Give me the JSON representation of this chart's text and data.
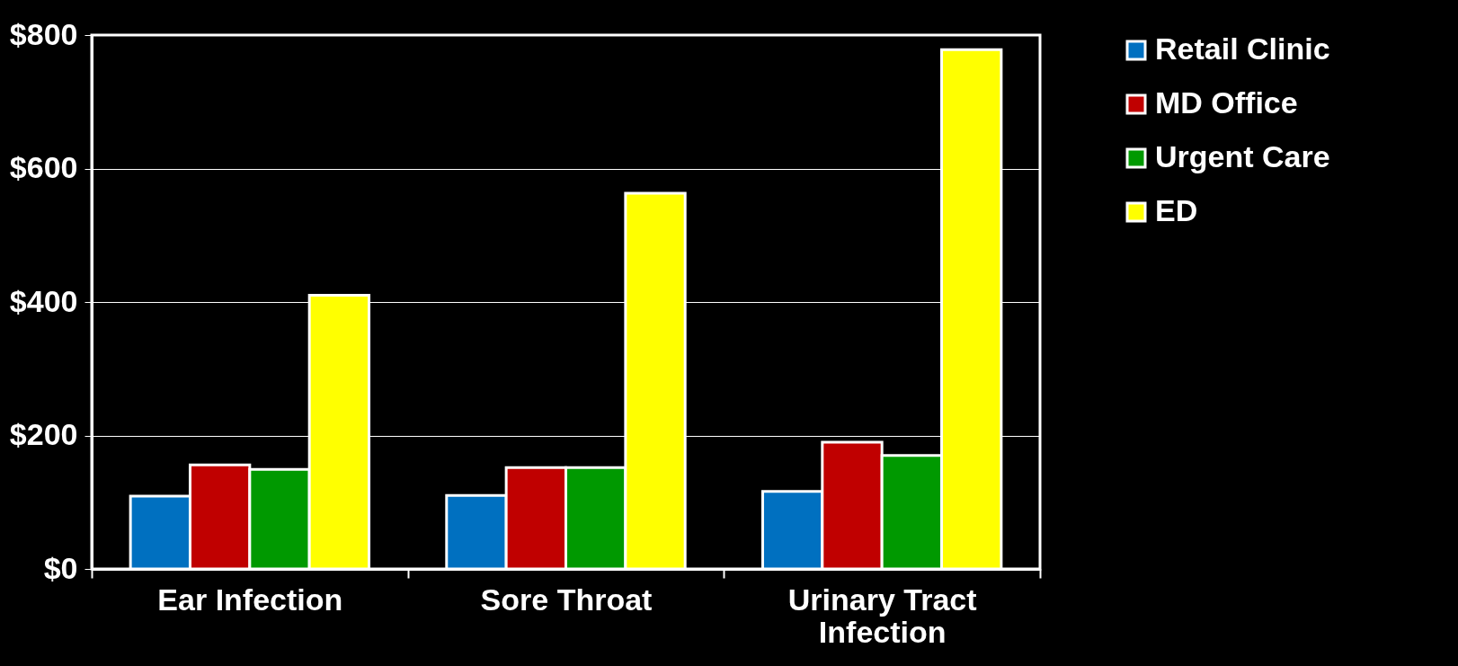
{
  "chart_data": {
    "type": "bar",
    "categories": [
      "Ear Infection",
      "Sore Throat",
      "Urinary Tract Infection"
    ],
    "series": [
      {
        "name": "Retail Clinic",
        "color": "#0070c0",
        "values": [
          109,
          110,
          116
        ]
      },
      {
        "name": "MD Office",
        "color": "#c00000",
        "values": [
          156,
          152,
          190
        ]
      },
      {
        "name": "Urgent Care",
        "color": "#009900",
        "values": [
          149,
          152,
          170
        ]
      },
      {
        "name": "ED",
        "color": "#ffff00",
        "values": [
          410,
          563,
          778
        ]
      }
    ],
    "ylim": [
      0,
      800
    ],
    "yticks": [
      {
        "value": 0,
        "label": "$0"
      },
      {
        "value": 200,
        "label": "$200"
      },
      {
        "value": 400,
        "label": "$400"
      },
      {
        "value": 600,
        "label": "$600"
      },
      {
        "value": 800,
        "label": "$800"
      }
    ],
    "grid": "y",
    "legend": "right"
  }
}
